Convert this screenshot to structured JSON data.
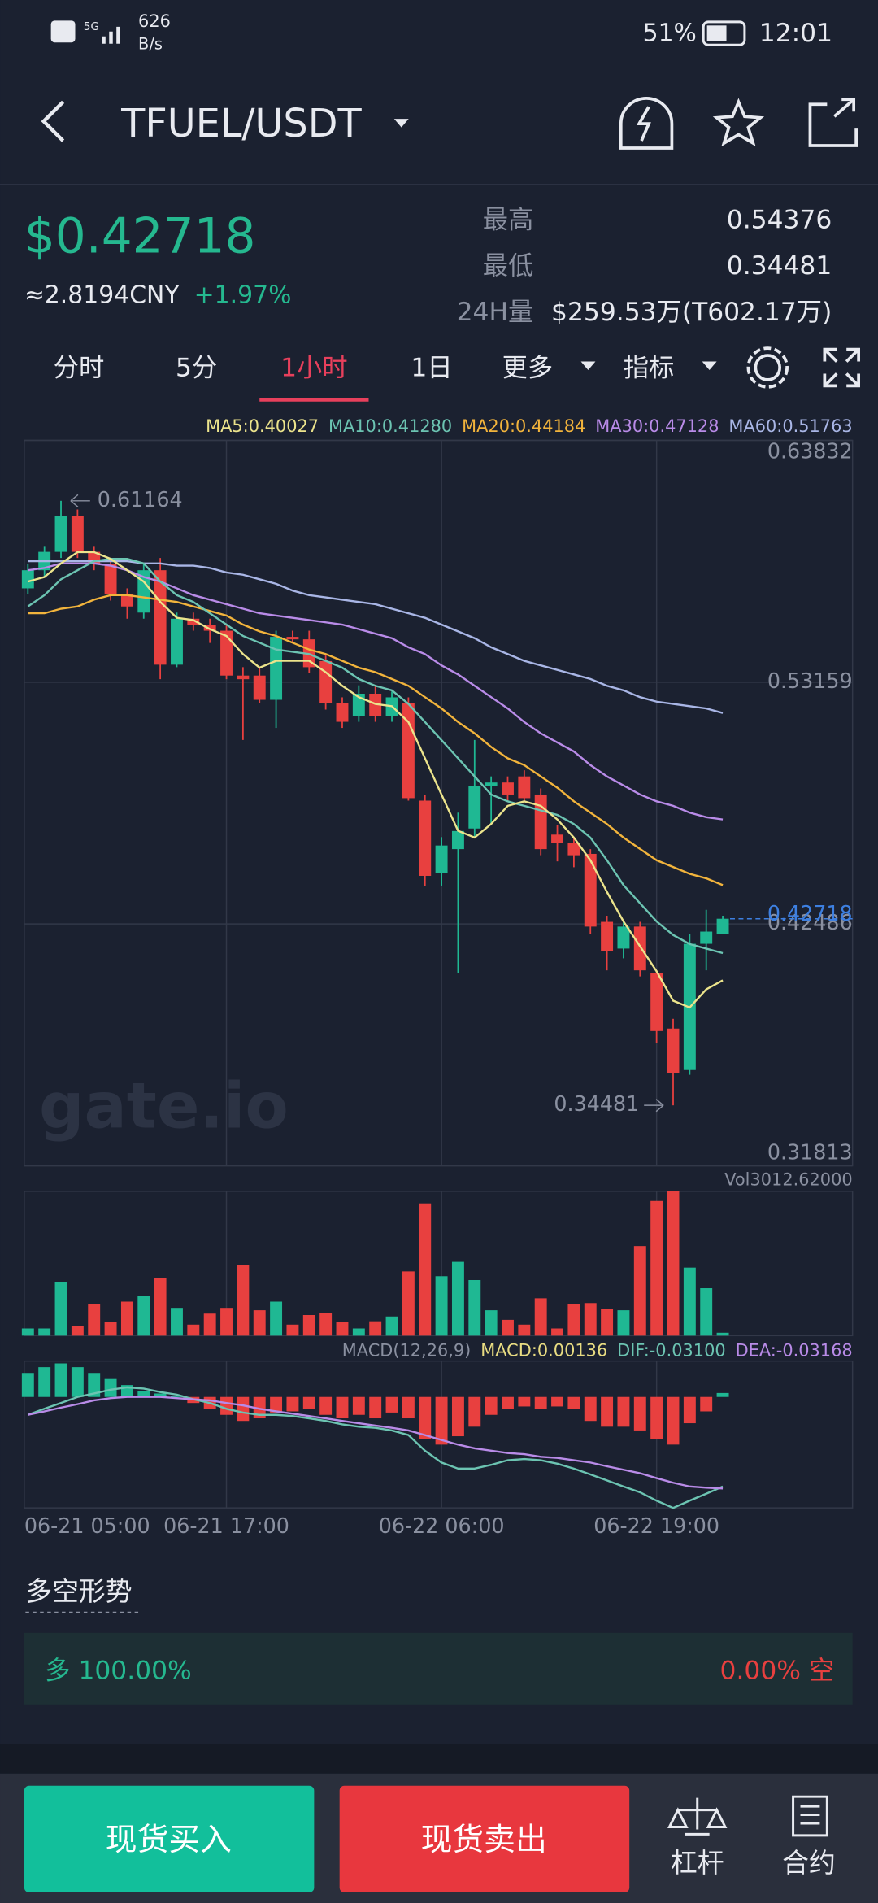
{
  "status_bar": {
    "speed": "626",
    "speed_unit": "B/s",
    "battery": "51%",
    "time": "12:01"
  },
  "header": {
    "pair": "TFUEL/USDT"
  },
  "ticker": {
    "price": "$0.42718",
    "cny": "≈2.8194CNY",
    "change": "+1.97%",
    "high_label": "最高",
    "high": "0.54376",
    "low_label": "最低",
    "low": "0.34481",
    "volume_label": "24H量",
    "volume": "$259.53万(T602.17万)"
  },
  "tabs": {
    "items": [
      "分时",
      "5分",
      "1小时",
      "1日",
      "更多",
      "指标"
    ],
    "active": 2
  },
  "watermark": "gate.io",
  "chart_data": [
    {
      "type": "candlestick",
      "up_color": "#1fb893",
      "down_color": "#e8403f",
      "categories": [
        "06-21 05:00",
        null,
        null,
        null,
        null,
        null,
        null,
        null,
        null,
        null,
        null,
        null,
        "06-21 17:00",
        null,
        null,
        null,
        null,
        null,
        null,
        null,
        null,
        null,
        null,
        null,
        null,
        "06-22 06:00",
        null,
        null,
        null,
        null,
        null,
        null,
        null,
        null,
        null,
        null,
        null,
        null,
        "06-22 19:00",
        null,
        null,
        null,
        null
      ],
      "open": [
        0.573,
        0.581,
        0.5891,
        0.6051,
        0.5891,
        0.5837,
        0.5703,
        0.5623,
        0.581,
        0.5393,
        0.5596,
        0.5569,
        0.5543,
        0.5345,
        0.5345,
        0.5238,
        0.5516,
        0.5505,
        0.5409,
        0.5222,
        0.5168,
        0.5265,
        0.5168,
        0.5222,
        0.4793,
        0.4472,
        0.4579,
        0.467,
        0.4857,
        0.4873,
        0.49,
        0.482,
        0.4643,
        0.4606,
        0.4558,
        0.4258,
        0.414,
        0.4237,
        0.4033,
        0.3787,
        0.3604,
        0.4161,
        0.4204
      ],
      "high": [
        0.5837,
        0.5917,
        0.61164,
        0.6078,
        0.5917,
        0.5864,
        0.573,
        0.5837,
        0.5864,
        0.5623,
        0.5623,
        0.5596,
        0.5569,
        0.5382,
        0.5382,
        0.5543,
        0.5543,
        0.5543,
        0.5436,
        0.5249,
        0.5302,
        0.5302,
        0.5275,
        0.5249,
        0.482,
        0.4632,
        0.474,
        0.5061,
        0.49,
        0.49,
        0.4927,
        0.4847,
        0.4686,
        0.4632,
        0.4579,
        0.4285,
        0.4258,
        0.4258,
        0.4044,
        0.383,
        0.4204,
        0.4311,
        0.4285
      ],
      "low": [
        0.5703,
        0.5783,
        0.5864,
        0.5864,
        0.581,
        0.5676,
        0.5596,
        0.5596,
        0.5329,
        0.5382,
        0.5543,
        0.5489,
        0.5329,
        0.5061,
        0.5222,
        0.5114,
        0.5489,
        0.5355,
        0.5195,
        0.5114,
        0.5141,
        0.5141,
        0.5141,
        0.4793,
        0.4418,
        0.4418,
        0.4033,
        0.4632,
        0.4686,
        0.4793,
        0.4793,
        0.4552,
        0.4525,
        0.4499,
        0.4204,
        0.4044,
        0.4097,
        0.4017,
        0.3722,
        0.34481,
        0.3583,
        0.4044,
        0.4204
      ],
      "close": [
        0.581,
        0.5891,
        0.6051,
        0.5891,
        0.5837,
        0.5703,
        0.565,
        0.581,
        0.5393,
        0.5596,
        0.5569,
        0.5543,
        0.5345,
        0.5329,
        0.5238,
        0.5516,
        0.5505,
        0.5382,
        0.5222,
        0.5141,
        0.5265,
        0.5168,
        0.5249,
        0.4804,
        0.4461,
        0.4595,
        0.4659,
        0.4857,
        0.4873,
        0.482,
        0.4804,
        0.4579,
        0.4606,
        0.4552,
        0.4237,
        0.4129,
        0.4237,
        0.4044,
        0.3776,
        0.3589,
        0.4161,
        0.4215,
        0.42718
      ],
      "series": [
        {
          "name": "MA5:0.40027",
          "color": "#ece48c",
          "values": [
            0.576,
            0.578,
            0.584,
            0.589,
            0.589,
            0.586,
            0.581,
            0.576,
            0.567,
            0.56,
            0.559,
            0.555,
            0.552,
            0.544,
            0.538,
            0.541,
            0.541,
            0.541,
            0.536,
            0.53,
            0.525,
            0.522,
            0.521,
            0.514,
            0.498,
            0.482,
            0.466,
            0.463,
            0.469,
            0.477,
            0.479,
            0.477,
            0.471,
            0.463,
            0.453,
            0.439,
            0.426,
            0.415,
            0.404,
            0.391,
            0.388,
            0.396,
            0.4
          ]
        },
        {
          "name": "MA10:0.41280",
          "color": "#6cc4b2",
          "values": [
            0.565,
            0.57,
            0.577,
            0.581,
            0.585,
            0.586,
            0.586,
            0.584,
            0.576,
            0.57,
            0.567,
            0.562,
            0.557,
            0.552,
            0.549,
            0.546,
            0.545,
            0.544,
            0.541,
            0.538,
            0.533,
            0.53,
            0.528,
            0.522,
            0.514,
            0.506,
            0.498,
            0.49,
            0.482,
            0.479,
            0.477,
            0.475,
            0.473,
            0.469,
            0.463,
            0.453,
            0.442,
            0.434,
            0.426,
            0.42,
            0.416,
            0.414,
            0.412
          ]
        },
        {
          "name": "MA20:0.44184",
          "color": "#f2b43c",
          "values": [
            0.562,
            0.562,
            0.564,
            0.565,
            0.568,
            0.57,
            0.57,
            0.569,
            0.568,
            0.567,
            0.565,
            0.563,
            0.561,
            0.557,
            0.554,
            0.552,
            0.549,
            0.546,
            0.544,
            0.541,
            0.538,
            0.536,
            0.533,
            0.53,
            0.525,
            0.52,
            0.514,
            0.509,
            0.503,
            0.498,
            0.495,
            0.49,
            0.485,
            0.479,
            0.474,
            0.469,
            0.463,
            0.458,
            0.453,
            0.45,
            0.447,
            0.445,
            0.442
          ]
        },
        {
          "name": "MA30:0.47128",
          "color": "#b98be8",
          "values": [
            0.581,
            0.582,
            0.584,
            0.584,
            0.584,
            0.583,
            0.581,
            0.578,
            0.576,
            0.573,
            0.57,
            0.568,
            0.566,
            0.564,
            0.562,
            0.561,
            0.56,
            0.559,
            0.558,
            0.557,
            0.555,
            0.553,
            0.551,
            0.547,
            0.544,
            0.539,
            0.535,
            0.53,
            0.525,
            0.52,
            0.514,
            0.509,
            0.505,
            0.501,
            0.495,
            0.49,
            0.486,
            0.482,
            0.479,
            0.477,
            0.474,
            0.472,
            0.471
          ]
        },
        {
          "name": "MA60:0.51763",
          "color": "#a9b6e6",
          "values": [
            0.585,
            0.585,
            0.585,
            0.585,
            0.585,
            0.585,
            0.585,
            0.584,
            0.584,
            0.583,
            0.583,
            0.582,
            0.58,
            0.579,
            0.577,
            0.575,
            0.572,
            0.57,
            0.569,
            0.568,
            0.567,
            0.566,
            0.564,
            0.562,
            0.56,
            0.557,
            0.554,
            0.551,
            0.547,
            0.544,
            0.541,
            0.539,
            0.537,
            0.535,
            0.533,
            0.53,
            0.528,
            0.525,
            0.523,
            0.522,
            0.521,
            0.52,
            0.518
          ]
        }
      ],
      "ylim": [
        0.31813,
        0.63832
      ],
      "yticks": [
        0.31813,
        0.42486,
        0.53159,
        0.63832
      ],
      "grid": true,
      "current_price": 0.42718,
      "high_annotation": 0.61164,
      "low_annotation": 0.34481
    },
    {
      "type": "bar",
      "label": "Vol3012.62000",
      "ylim": [
        0,
        3012.62
      ],
      "values": [
        150,
        150,
        1110,
        200,
        660,
        280,
        710,
        830,
        1210,
        580,
        230,
        460,
        580,
        1470,
        530,
        710,
        230,
        430,
        480,
        280,
        150,
        300,
        400,
        1340,
        2760,
        1240,
        1540,
        1160,
        530,
        330,
        230,
        780,
        150,
        660,
        680,
        560,
        530,
        1870,
        2810,
        3010,
        1420,
        990,
        60
      ]
    },
    {
      "type": "macd",
      "title": "MACD(12,26,9)",
      "ylim": [
        -0.0384,
        0.0124
      ],
      "series": [
        {
          "name": "MACD:0.00136",
          "color": "#e8dc82",
          "values": [
            0.0083,
            0.0103,
            0.0116,
            0.0103,
            0.0083,
            0.0062,
            0.0041,
            0.0021,
            0.0012,
            0.0004,
            -0.0021,
            -0.0041,
            -0.0062,
            -0.0083,
            -0.0074,
            -0.0054,
            -0.005,
            -0.0041,
            -0.0062,
            -0.0074,
            -0.0062,
            -0.0074,
            -0.0054,
            -0.0074,
            -0.0145,
            -0.0165,
            -0.0136,
            -0.0103,
            -0.0062,
            -0.0041,
            -0.0033,
            -0.0041,
            -0.0033,
            -0.0041,
            -0.0083,
            -0.0103,
            -0.0103,
            -0.0116,
            -0.0145,
            -0.0165,
            -0.0091,
            -0.005,
            0.00136
          ]
        },
        {
          "name": "DIF:-0.03100",
          "color": "#6cc4b2",
          "values": [
            -0.0062,
            -0.0041,
            -0.0021,
            0,
            0.0012,
            0.0025,
            0.0033,
            0.0029,
            0.0017,
            0.0008,
            -0.0008,
            -0.0021,
            -0.0041,
            -0.0054,
            -0.0062,
            -0.0062,
            -0.0066,
            -0.0074,
            -0.0083,
            -0.0095,
            -0.0103,
            -0.0107,
            -0.0116,
            -0.0132,
            -0.0186,
            -0.0227,
            -0.0248,
            -0.0248,
            -0.0235,
            -0.0219,
            -0.0215,
            -0.0219,
            -0.0231,
            -0.0248,
            -0.0268,
            -0.0289,
            -0.031,
            -0.033,
            -0.0359,
            -0.0384,
            -0.0359,
            -0.0335,
            -0.031
          ]
        },
        {
          "name": "DEA:-0.03168",
          "color": "#b98be8",
          "values": [
            -0.0062,
            -0.005,
            -0.0037,
            -0.0025,
            -0.0012,
            -0.0004,
            0,
            0,
            0,
            -0.0004,
            -0.0008,
            -0.0012,
            -0.0021,
            -0.0029,
            -0.0041,
            -0.005,
            -0.0058,
            -0.0066,
            -0.0074,
            -0.0083,
            -0.0091,
            -0.0099,
            -0.0107,
            -0.0116,
            -0.0132,
            -0.0149,
            -0.0165,
            -0.0178,
            -0.0186,
            -0.0194,
            -0.0198,
            -0.0207,
            -0.0211,
            -0.0219,
            -0.0227,
            -0.024,
            -0.0252,
            -0.0264,
            -0.0281,
            -0.0297,
            -0.031,
            -0.0314,
            -0.03168
          ]
        }
      ]
    }
  ],
  "sentiment": {
    "title": "多空形势",
    "long": "多 100.00%",
    "short": "0.00% 空"
  },
  "actions": {
    "buy": "现货买入",
    "sell": "现货卖出",
    "margin": "杠杆",
    "futures": "合约"
  }
}
